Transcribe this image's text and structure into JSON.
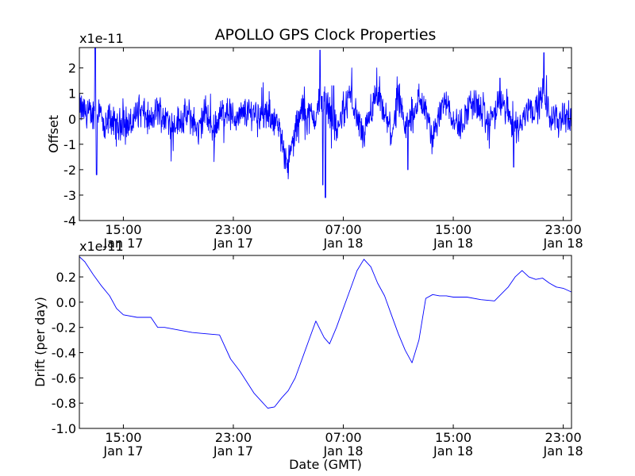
{
  "chart_data": [
    {
      "type": "line",
      "title": "APOLLO GPS Clock Properties",
      "xlabel": "",
      "ylabel": "Offset",
      "y_offset_text": "x1e-11",
      "ylim": [
        -4,
        2.8
      ],
      "yticks": [
        -4,
        -3,
        -2,
        -1,
        0,
        1,
        2
      ],
      "ytick_labels": [
        "-4",
        "-3",
        "-2",
        "-1",
        "0",
        "1",
        "2"
      ],
      "xlim_hours": [
        11.8,
        47.6
      ],
      "xticks_hours": [
        15,
        23,
        31,
        39,
        47
      ],
      "xtick_labels": [
        [
          "15:00",
          "Jan 17"
        ],
        [
          "23:00",
          "Jan 17"
        ],
        [
          "07:00",
          "Jan 18"
        ],
        [
          "15:00",
          "Jan 18"
        ],
        [
          "23:00",
          "Jan 18"
        ]
      ],
      "grid": false,
      "color": "#0000ff",
      "series": [
        {
          "name": "Offset",
          "noisy": true,
          "x_hours": [
            11.8,
            12.2,
            12.6,
            13.0,
            13.3,
            13.6,
            14.0,
            14.5,
            15.0,
            15.5,
            16.0,
            16.5,
            17.0,
            17.5,
            18.0,
            18.5,
            19.0,
            19.5,
            20.0,
            20.5,
            21.0,
            21.5,
            22.0,
            22.5,
            23.0,
            23.5,
            24.0,
            24.5,
            25.0,
            25.5,
            26.0,
            26.5,
            27.0,
            27.5,
            28.0,
            28.5,
            29.0,
            29.5,
            30.0,
            30.5,
            31.0,
            31.5,
            32.0,
            32.5,
            33.0,
            33.5,
            34.0,
            34.5,
            35.0,
            35.5,
            36.0,
            36.5,
            37.0,
            37.5,
            38.0,
            38.5,
            39.0,
            39.5,
            40.0,
            40.5,
            41.0,
            41.5,
            42.0,
            42.5,
            43.0,
            43.5,
            44.0,
            44.5,
            45.0,
            45.5,
            46.0,
            46.5,
            47.0,
            47.6
          ],
          "y": [
            0.4,
            0.3,
            0.1,
            0.3,
            0.5,
            -0.6,
            0.1,
            -0.4,
            0.0,
            -0.3,
            0.3,
            0.2,
            -0.2,
            0.4,
            0.0,
            -0.2,
            -0.1,
            0.1,
            0.0,
            -0.5,
            0.3,
            -0.5,
            0.1,
            0.4,
            0.0,
            0.1,
            0.2,
            0.3,
            0.2,
            0.1,
            0.0,
            -0.8,
            -1.8,
            -0.5,
            0.4,
            0.1,
            0.1,
            0.9,
            0.4,
            -0.5,
            0.2,
            1.0,
            0.0,
            -0.8,
            0.2,
            0.9,
            0.1,
            -0.6,
            0.7,
            -0.4,
            0.1,
            0.8,
            0.3,
            -0.9,
            0.3,
            0.8,
            0.0,
            -0.3,
            0.3,
            0.7,
            0.3,
            -0.2,
            0.3,
            0.6,
            0.2,
            -0.3,
            -0.2,
            0.6,
            0.3,
            1.0,
            0.2,
            -0.1,
            0.2,
            -0.1
          ],
          "spikes": [
            [
              12.95,
              2.8
            ],
            [
              13.05,
              -2.2
            ],
            [
              29.3,
              2.7
            ],
            [
              29.5,
              -2.6
            ],
            [
              29.7,
              -3.1
            ],
            [
              30.3,
              1.3
            ],
            [
              35.7,
              -2.0
            ],
            [
              42.4,
              1.6
            ],
            [
              43.4,
              -1.9
            ],
            [
              45.6,
              2.6
            ]
          ]
        }
      ]
    },
    {
      "type": "line",
      "title": "",
      "xlabel": "Date (GMT)",
      "ylabel": "Drift (per day)",
      "y_offset_text": "x1e-11",
      "ylim": [
        -1.0,
        0.37
      ],
      "yticks": [
        -1.0,
        -0.8,
        -0.6,
        -0.4,
        -0.2,
        0.0,
        0.2
      ],
      "ytick_labels": [
        "-1.0",
        "-0.8",
        "-0.6",
        "-0.4",
        "-0.2",
        "0.0",
        "0.2"
      ],
      "xlim_hours": [
        11.8,
        47.6
      ],
      "xticks_hours": [
        15,
        23,
        31,
        39,
        47
      ],
      "xtick_labels": [
        [
          "15:00",
          "Jan 17"
        ],
        [
          "23:00",
          "Jan 17"
        ],
        [
          "07:00",
          "Jan 18"
        ],
        [
          "15:00",
          "Jan 18"
        ],
        [
          "23:00",
          "Jan 18"
        ]
      ],
      "grid": false,
      "color": "#0000ff",
      "series": [
        {
          "name": "Drift",
          "noisy": false,
          "x_hours": [
            11.8,
            12.2,
            12.8,
            13.4,
            14.0,
            14.5,
            15.0,
            16.0,
            17.0,
            17.5,
            18.0,
            19.0,
            20.0,
            21.0,
            22.0,
            22.8,
            23.5,
            24.5,
            25.5,
            26.0,
            26.5,
            27.0,
            27.5,
            28.0,
            28.5,
            29.0,
            29.6,
            30.0,
            30.5,
            31.0,
            31.5,
            32.0,
            32.5,
            33.0,
            33.5,
            34.0,
            34.5,
            35.0,
            35.5,
            36.0,
            36.5,
            37.0,
            37.5,
            38.0,
            38.5,
            39.0,
            40.0,
            41.0,
            42.0,
            43.0,
            43.5,
            44.0,
            44.5,
            45.0,
            45.5,
            46.0,
            46.5,
            47.0,
            47.6
          ],
          "y": [
            0.36,
            0.32,
            0.22,
            0.13,
            0.05,
            -0.05,
            -0.1,
            -0.12,
            -0.12,
            -0.2,
            -0.2,
            -0.22,
            -0.24,
            -0.25,
            -0.26,
            -0.45,
            -0.55,
            -0.72,
            -0.84,
            -0.83,
            -0.76,
            -0.7,
            -0.6,
            -0.45,
            -0.3,
            -0.15,
            -0.28,
            -0.33,
            -0.2,
            -0.05,
            0.1,
            0.25,
            0.34,
            0.28,
            0.15,
            0.05,
            -0.1,
            -0.25,
            -0.38,
            -0.48,
            -0.3,
            0.03,
            0.06,
            0.05,
            0.05,
            0.04,
            0.04,
            0.02,
            0.01,
            0.12,
            0.2,
            0.25,
            0.2,
            0.18,
            0.19,
            0.15,
            0.12,
            0.11,
            0.08
          ]
        }
      ]
    }
  ]
}
